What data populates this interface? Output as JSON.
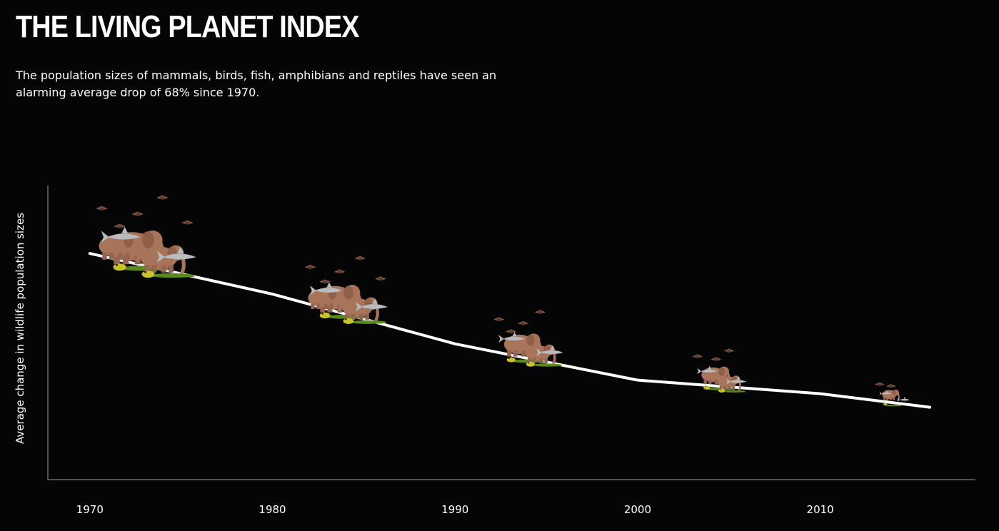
{
  "header": {
    "title": "THE LIVING PLANET INDEX",
    "subtitle": "The population sizes of mammals, birds, fish, amphibians and reptiles have seen an alarming average drop of 68% since 1970."
  },
  "colors": {
    "background": "#050505",
    "line": "#ffffff",
    "axis": "#9a9a9a",
    "elephant": "#a8745a",
    "shark": "#b8bcc0",
    "crocodile": "#5a8a1e",
    "frog": "#c9c22a",
    "bird": "#8a5a44"
  },
  "chart_data": {
    "type": "line",
    "title": "THE LIVING PLANET INDEX",
    "xlabel": "",
    "ylabel": "Average change in wildlife population sizes",
    "x_ticks": [
      "1970",
      "1980",
      "1990",
      "2000",
      "2010"
    ],
    "xlim": [
      1967.7,
      2018.5
    ],
    "ylim": [
      0,
      1.3
    ],
    "grid": false,
    "series": [
      {
        "x": [
          1970,
          1980,
          1990,
          2000,
          2010,
          2016
        ],
        "values": [
          1.0,
          0.82,
          0.6,
          0.44,
          0.38,
          0.32
        ]
      }
    ],
    "illustrations": [
      {
        "year": 1973,
        "size": 1.0
      },
      {
        "year": 1984,
        "size": 0.82
      },
      {
        "year": 1994,
        "size": 0.68
      },
      {
        "year": 2004.5,
        "size": 0.52
      },
      {
        "year": 2014,
        "size": 0.32
      }
    ]
  }
}
